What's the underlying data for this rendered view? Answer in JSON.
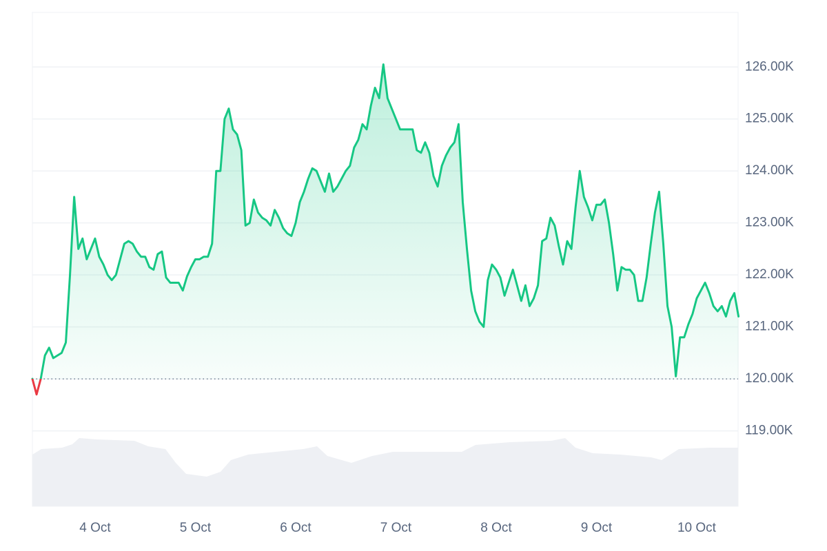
{
  "chart_data": {
    "type": "line",
    "x": [
      9,
      10,
      11,
      12,
      13,
      14,
      15,
      16,
      17,
      18,
      19,
      20,
      21,
      22,
      23,
      24,
      25,
      26,
      27,
      28,
      29,
      30,
      31,
      32,
      33,
      34,
      35,
      36,
      37,
      38,
      39,
      40,
      41,
      42,
      43,
      44,
      45,
      46,
      47,
      48,
      49,
      50,
      51,
      52,
      53,
      54,
      55,
      56,
      57,
      58,
      59,
      60,
      61,
      62,
      63,
      64,
      65,
      66,
      67,
      68,
      69,
      70,
      71,
      72,
      73,
      74,
      75,
      76,
      77,
      78,
      79,
      80,
      81,
      82,
      83,
      84,
      85,
      86,
      87,
      88,
      89,
      90,
      91,
      92,
      93,
      94,
      95,
      96,
      97,
      98,
      99,
      100,
      101,
      102,
      103,
      104,
      105,
      106,
      107,
      108,
      109,
      110,
      111,
      112,
      113,
      114,
      115,
      116,
      117,
      118,
      119,
      120,
      121,
      122,
      123,
      124,
      125,
      126,
      127,
      128,
      129,
      130,
      131,
      132,
      133,
      134,
      135,
      136,
      137,
      138,
      139,
      140,
      141,
      142,
      143,
      144,
      145,
      146,
      147,
      148,
      149,
      150,
      151,
      152,
      153,
      154,
      155,
      156,
      157,
      158,
      159,
      160,
      161,
      162,
      163,
      164,
      165,
      166,
      167,
      168,
      169,
      170,
      171,
      172,
      173,
      174,
      175,
      176,
      177,
      178
    ],
    "series": [
      {
        "color": "#16c784",
        "below_color": "#ea3943",
        "values": [
          120000,
          119700,
          120000,
          120450,
          120600,
          120400,
          120450,
          120500,
          120700,
          122000,
          123500,
          122500,
          122700,
          122300,
          122500,
          122700,
          122350,
          122200,
          122000,
          121900,
          122000,
          122300,
          122600,
          122650,
          122600,
          122450,
          122350,
          122350,
          122150,
          122100,
          122400,
          122450,
          121950,
          121850,
          121850,
          121850,
          121700,
          121970,
          122150,
          122300,
          122300,
          122350,
          122350,
          122600,
          124000,
          124000,
          125000,
          125200,
          124800,
          124700,
          124400,
          122950,
          123000,
          123450,
          123200,
          123100,
          123050,
          122950,
          123250,
          123100,
          122900,
          122800,
          122750,
          123000,
          123400,
          123600,
          123850,
          124050,
          124000,
          123800,
          123600,
          123950,
          123600,
          123700,
          123850,
          124000,
          124100,
          124450,
          124600,
          124900,
          124800,
          125250,
          125600,
          125400,
          126050,
          125400,
          125200,
          125000,
          124800,
          124800,
          124800,
          124800,
          124400,
          124350,
          124550,
          124350,
          123900,
          123700,
          124100,
          124300,
          124450,
          124550,
          124900,
          123400,
          122500,
          121700,
          121300,
          121100,
          121000,
          121900,
          122200,
          122100,
          121950,
          121600,
          121850,
          122100,
          121800,
          121500,
          121800,
          121400,
          121550,
          121800,
          122650,
          122700,
          123100,
          122950,
          122550,
          122200,
          122650,
          122500,
          123300,
          124000,
          123500,
          123300,
          123050,
          123350,
          123350,
          123450,
          123000,
          122400,
          121700,
          122150,
          122100,
          122100,
          122000,
          121500,
          121500,
          121950,
          122600,
          123200,
          123600,
          122600,
          121400,
          121000,
          120050,
          120800,
          120800,
          121050,
          121250,
          121550,
          121700,
          121850,
          121650,
          121400,
          121300,
          121400,
          121200,
          121500,
          121650,
          121200
        ]
      }
    ],
    "xlim": [
      9,
      177.9
    ],
    "xticks": [
      {
        "value": 24,
        "label": "4 Oct"
      },
      {
        "value": 48,
        "label": "5 Oct"
      },
      {
        "value": 72,
        "label": "6 Oct"
      },
      {
        "value": 96,
        "label": "7 Oct"
      },
      {
        "value": 120,
        "label": "8 Oct"
      },
      {
        "value": 144,
        "label": "9 Oct"
      },
      {
        "value": 168,
        "label": "10 Oct"
      }
    ],
    "ylim": [
      117550,
      127050
    ],
    "yticks": [
      {
        "value": 119000,
        "label": "119.00K"
      },
      {
        "value": 120000,
        "label": "120.00K"
      },
      {
        "value": 121000,
        "label": "121.00K"
      },
      {
        "value": 122000,
        "label": "122.00K"
      },
      {
        "value": 123000,
        "label": "123.00K"
      },
      {
        "value": 124000,
        "label": "124.00K"
      },
      {
        "value": 125000,
        "label": "125.00K"
      },
      {
        "value": 126000,
        "label": "126.00K"
      }
    ],
    "grid": true
  }
}
